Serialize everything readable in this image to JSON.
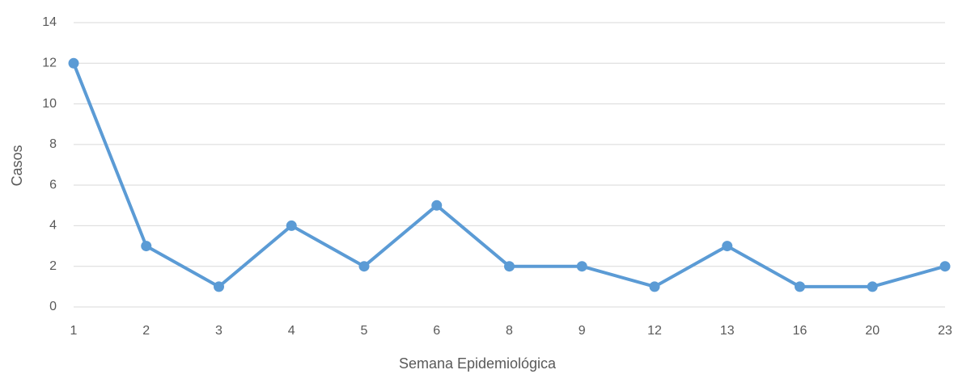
{
  "chart_data": {
    "type": "line",
    "xlabel": "Semana Epidemiológica",
    "ylabel": "Casos",
    "categories": [
      "1",
      "2",
      "3",
      "4",
      "5",
      "6",
      "8",
      "9",
      "12",
      "13",
      "16",
      "20",
      "23"
    ],
    "series": [
      {
        "name": "Casos",
        "color": "#5b9bd5",
        "values": [
          12,
          3,
          1,
          4,
          2,
          5,
          2,
          2,
          1,
          3,
          1,
          1,
          2
        ]
      }
    ],
    "ylim": [
      0,
      14
    ],
    "yticks": [
      0,
      2,
      4,
      6,
      8,
      10,
      12,
      14
    ],
    "grid": true
  }
}
